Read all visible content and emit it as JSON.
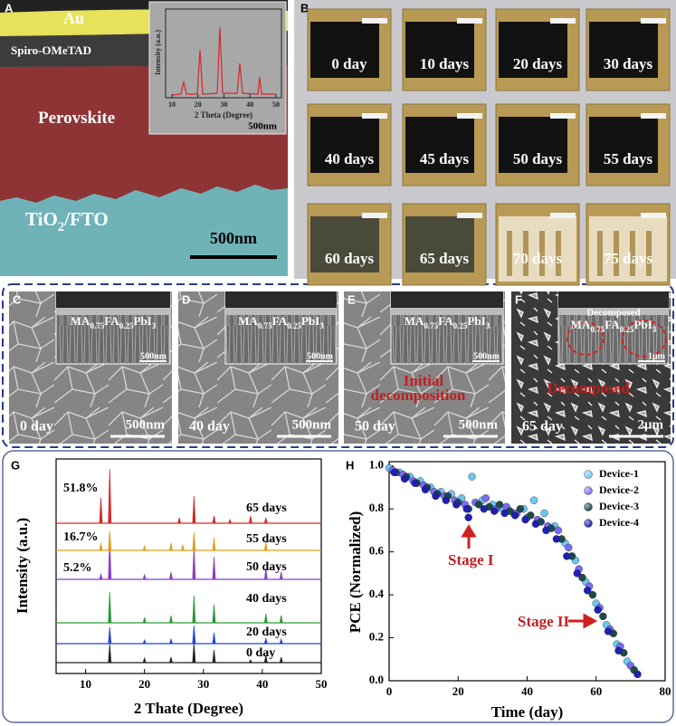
{
  "panels": {
    "A": {
      "letter": "A",
      "layers": [
        "Au",
        "Spiro-OMeTAD",
        "Perovskite",
        "TiO2/FTO"
      ],
      "scale": "500nm",
      "inset": {
        "ylabel": "Intensity (a.u.)",
        "xlabel": "2 Theta (Degree)",
        "xticks": [
          10,
          20,
          30,
          40,
          50
        ],
        "scale": "500nm"
      }
    },
    "B": {
      "letter": "B",
      "labels": [
        "0 day",
        "10 days",
        "20 days",
        "30 days",
        "40 days",
        "45 days",
        "50 days",
        "55 days",
        "60 days",
        "65 days",
        "70 days",
        "75 days"
      ]
    },
    "sem": [
      {
        "letter": "C",
        "inset_label": "MA0.75FA0.25PbI3",
        "inset_scale": "500nm",
        "day": "0 day",
        "scale": "500nm"
      },
      {
        "letter": "D",
        "inset_label": "MA0.75FA0.25PbI3",
        "inset_scale": "500nm",
        "day": "40 day",
        "scale": "500nm"
      },
      {
        "letter": "E",
        "inset_label": "MA0.75FA0.25PbI3",
        "inset_scale": "500nm",
        "day": "50 day",
        "scale": "500nm",
        "note": [
          "Initial",
          "decomposition"
        ]
      },
      {
        "letter": "F",
        "inset_title": "Decomposed",
        "inset_label": "MA0.75FA0.25PbI3",
        "inset_scale": "1μm",
        "day": "65 day",
        "scale": "2μm",
        "note": [
          "Decomposed"
        ]
      }
    ]
  },
  "chart_data": [
    {
      "type": "line",
      "letter": "G",
      "xlabel": "2 Thate (Degree)",
      "ylabel": "Intensity (a.u.)",
      "xlim": [
        5,
        50
      ],
      "xticks": [
        10,
        20,
        30,
        40,
        50
      ],
      "series": [
        {
          "name": "0 day",
          "color": "#222222",
          "x": [
            14.1,
            20,
            24.5,
            28.4,
            31.8,
            38,
            40.6,
            43.2
          ],
          "values": [
            20,
            5,
            6,
            22,
            14,
            3,
            8,
            6
          ]
        },
        {
          "name": "20 days",
          "color": "#2346d6",
          "x": [
            14.1,
            20,
            24.5,
            28.4,
            31.8,
            40.6,
            43.2
          ],
          "values": [
            18,
            4,
            5,
            20,
            12,
            6,
            5
          ]
        },
        {
          "name": "40 days",
          "color": "#2a9a3a",
          "x": [
            14.1,
            20,
            24.5,
            28.4,
            31.8,
            40.6,
            43.2
          ],
          "values": [
            34,
            6,
            8,
            30,
            20,
            10,
            8
          ]
        },
        {
          "name": "50 days",
          "color": "#8a3fc0",
          "annotation": "5.2%",
          "x": [
            12.6,
            14.1,
            20,
            24.5,
            28.4,
            31.8,
            40.6,
            43.2
          ],
          "values": [
            6,
            45,
            5,
            8,
            35,
            25,
            12,
            8
          ]
        },
        {
          "name": "55 days",
          "color": "#e0a020",
          "annotation": "16.7%",
          "x": [
            12.6,
            14.1,
            20,
            24.5,
            26.5,
            28.4,
            31.8,
            40.6
          ],
          "values": [
            8,
            22,
            5,
            8,
            6,
            20,
            14,
            10
          ]
        },
        {
          "name": "65 days",
          "color": "#d42a2a",
          "annotation": "51.8%",
          "x": [
            12.6,
            14.1,
            25.9,
            28.4,
            31.8,
            34.5,
            38,
            40.6
          ],
          "values": [
            28,
            60,
            6,
            30,
            8,
            4,
            8,
            6
          ]
        }
      ]
    },
    {
      "type": "scatter",
      "letter": "H",
      "xlabel": "Time (day)",
      "ylabel": "PCE (Normalized)",
      "xlim": [
        0,
        80
      ],
      "xticks": [
        0,
        20,
        40,
        60,
        80
      ],
      "ylim": [
        0,
        1.02
      ],
      "yticks": [
        {
          "value": 0,
          "label": "0.0"
        },
        0.2,
        0.4,
        0.6,
        0.8,
        {
          "value": 1,
          "label": "1.0"
        }
      ],
      "legend": "upper right",
      "annotations": [
        "Stage I",
        "Stage II"
      ],
      "series": [
        {
          "name": "Device-1",
          "color": "#6ec6f0",
          "x": [
            0,
            3,
            6,
            9,
            12,
            15,
            18,
            21,
            24,
            27,
            30,
            33,
            36,
            39,
            42,
            45,
            48,
            51,
            54,
            57,
            60,
            63,
            66,
            69
          ],
          "values": [
            0.99,
            0.97,
            0.95,
            0.93,
            0.9,
            0.88,
            0.87,
            0.85,
            0.95,
            0.84,
            0.82,
            0.8,
            0.78,
            0.8,
            0.84,
            0.78,
            0.72,
            0.64,
            0.56,
            0.46,
            0.36,
            0.26,
            0.17,
            0.09
          ]
        },
        {
          "name": "Device-2",
          "color": "#7a6cf0",
          "x": [
            1,
            4,
            7,
            10,
            13,
            16,
            19,
            22,
            25,
            28,
            31,
            34,
            37,
            40,
            43,
            46,
            49,
            52,
            55,
            58,
            61,
            64,
            67,
            70
          ],
          "values": [
            0.98,
            0.96,
            0.93,
            0.91,
            0.88,
            0.86,
            0.84,
            0.82,
            0.83,
            0.85,
            0.8,
            0.81,
            0.78,
            0.76,
            0.75,
            0.72,
            0.7,
            0.62,
            0.52,
            0.44,
            0.34,
            0.24,
            0.16,
            0.07
          ]
        },
        {
          "name": "Device-3",
          "color": "#1f4a4a",
          "x": [
            2,
            5,
            8,
            11,
            14,
            17,
            20,
            23,
            26,
            29,
            32,
            35,
            38,
            41,
            44,
            47,
            50,
            53,
            56,
            59,
            62,
            65,
            68,
            71
          ],
          "values": [
            0.97,
            0.95,
            0.92,
            0.9,
            0.87,
            0.86,
            0.83,
            0.8,
            0.82,
            0.81,
            0.82,
            0.79,
            0.8,
            0.77,
            0.74,
            0.71,
            0.66,
            0.58,
            0.48,
            0.4,
            0.3,
            0.22,
            0.13,
            0.05
          ]
        },
        {
          "name": "Device-4",
          "color": "#2020b0",
          "x": [
            1.5,
            4.5,
            7.5,
            10.5,
            13.5,
            16.5,
            19.5,
            22.5,
            23,
            27.5,
            30.5,
            33.5,
            36.5,
            39.5,
            42.5,
            45.5,
            48.5,
            51.5,
            54.5,
            57.5,
            60.5,
            63.5,
            66.5,
            72
          ],
          "values": [
            0.97,
            0.94,
            0.92,
            0.89,
            0.86,
            0.84,
            0.82,
            0.8,
            0.76,
            0.8,
            0.79,
            0.78,
            0.77,
            0.75,
            0.73,
            0.7,
            0.66,
            0.58,
            0.5,
            0.42,
            0.33,
            0.23,
            0.14,
            0.03
          ]
        }
      ]
    }
  ]
}
